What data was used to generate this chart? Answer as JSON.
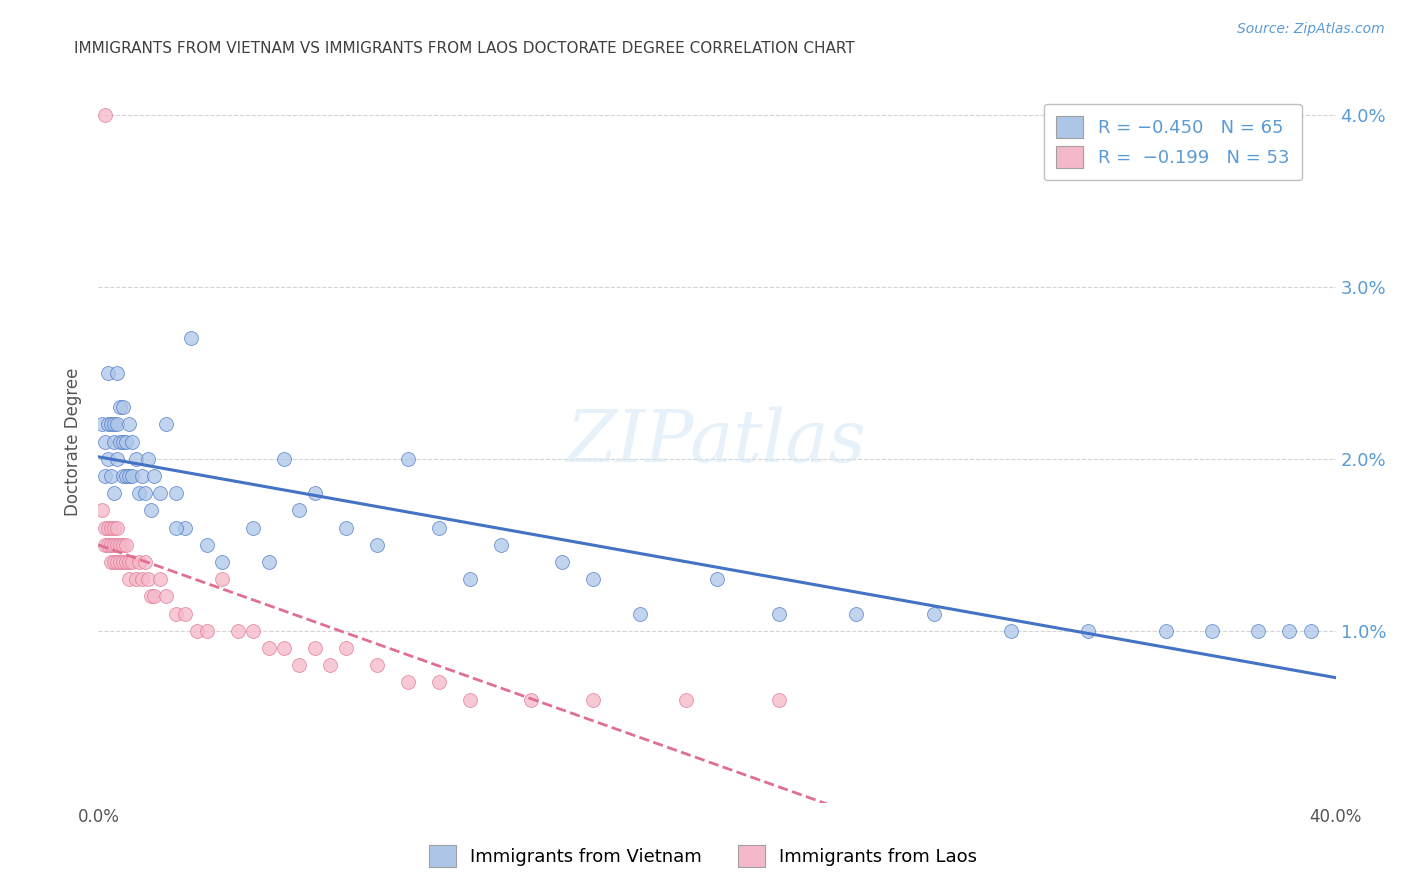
{
  "title": "IMMIGRANTS FROM VIETNAM VS IMMIGRANTS FROM LAOS DOCTORATE DEGREE CORRELATION CHART",
  "source": "Source: ZipAtlas.com",
  "ylabel": "Doctorate Degree",
  "xlim": [
    0.0,
    0.4
  ],
  "ylim": [
    0.0,
    0.042
  ],
  "yticks": [
    0.0,
    0.01,
    0.02,
    0.03,
    0.04
  ],
  "ytick_labels": [
    "",
    "1.0%",
    "2.0%",
    "3.0%",
    "4.0%"
  ],
  "xticks": [
    0.0,
    0.05,
    0.1,
    0.15,
    0.2,
    0.25,
    0.3,
    0.35,
    0.4
  ],
  "xtick_labels": [
    "0.0%",
    "",
    "",
    "",
    "",
    "",
    "",
    "",
    "40.0%"
  ],
  "legend_line1": "R = −0.450   N = 65",
  "legend_line2": "R =  −0.199   N = 53",
  "color_vietnam": "#adc6e8",
  "color_laos": "#f5b8c8",
  "line_color_vietnam": "#4472c4",
  "line_color_laos": "#e07090",
  "background_color": "#ffffff",
  "grid_color": "#c8c8c8",
  "title_color": "#404040",
  "vietnam_x": [
    0.001,
    0.002,
    0.002,
    0.003,
    0.003,
    0.003,
    0.004,
    0.004,
    0.005,
    0.005,
    0.005,
    0.006,
    0.006,
    0.006,
    0.007,
    0.007,
    0.008,
    0.008,
    0.008,
    0.009,
    0.009,
    0.01,
    0.01,
    0.011,
    0.011,
    0.012,
    0.013,
    0.014,
    0.015,
    0.016,
    0.017,
    0.018,
    0.02,
    0.022,
    0.025,
    0.028,
    0.03,
    0.06,
    0.065,
    0.07,
    0.08,
    0.09,
    0.1,
    0.11,
    0.12,
    0.13,
    0.15,
    0.16,
    0.175,
    0.2,
    0.22,
    0.245,
    0.27,
    0.295,
    0.32,
    0.345,
    0.36,
    0.375,
    0.385,
    0.392,
    0.025,
    0.035,
    0.04,
    0.05,
    0.055
  ],
  "vietnam_y": [
    0.022,
    0.021,
    0.019,
    0.025,
    0.022,
    0.02,
    0.022,
    0.019,
    0.022,
    0.021,
    0.018,
    0.025,
    0.022,
    0.02,
    0.023,
    0.021,
    0.023,
    0.021,
    0.019,
    0.021,
    0.019,
    0.022,
    0.019,
    0.021,
    0.019,
    0.02,
    0.018,
    0.019,
    0.018,
    0.02,
    0.017,
    0.019,
    0.018,
    0.022,
    0.018,
    0.016,
    0.027,
    0.02,
    0.017,
    0.018,
    0.016,
    0.015,
    0.02,
    0.016,
    0.013,
    0.015,
    0.014,
    0.013,
    0.011,
    0.013,
    0.011,
    0.011,
    0.011,
    0.01,
    0.01,
    0.01,
    0.01,
    0.01,
    0.01,
    0.01,
    0.016,
    0.015,
    0.014,
    0.016,
    0.014
  ],
  "laos_x": [
    0.001,
    0.002,
    0.002,
    0.003,
    0.003,
    0.004,
    0.004,
    0.004,
    0.005,
    0.005,
    0.005,
    0.006,
    0.006,
    0.006,
    0.007,
    0.007,
    0.008,
    0.008,
    0.009,
    0.009,
    0.01,
    0.01,
    0.011,
    0.012,
    0.013,
    0.014,
    0.015,
    0.016,
    0.017,
    0.018,
    0.02,
    0.022,
    0.025,
    0.028,
    0.032,
    0.035,
    0.04,
    0.045,
    0.05,
    0.055,
    0.06,
    0.065,
    0.07,
    0.075,
    0.08,
    0.09,
    0.1,
    0.11,
    0.12,
    0.14,
    0.16,
    0.19,
    0.22
  ],
  "laos_y": [
    0.017,
    0.016,
    0.015,
    0.016,
    0.015,
    0.016,
    0.015,
    0.014,
    0.016,
    0.015,
    0.014,
    0.016,
    0.015,
    0.014,
    0.015,
    0.014,
    0.015,
    0.014,
    0.015,
    0.014,
    0.014,
    0.013,
    0.014,
    0.013,
    0.014,
    0.013,
    0.014,
    0.013,
    0.012,
    0.012,
    0.013,
    0.012,
    0.011,
    0.011,
    0.01,
    0.01,
    0.013,
    0.01,
    0.01,
    0.009,
    0.009,
    0.008,
    0.009,
    0.008,
    0.009,
    0.008,
    0.007,
    0.007,
    0.006,
    0.006,
    0.006,
    0.006,
    0.006
  ],
  "laos_outlier_x": [
    0.002
  ],
  "laos_outlier_y": [
    0.04
  ]
}
